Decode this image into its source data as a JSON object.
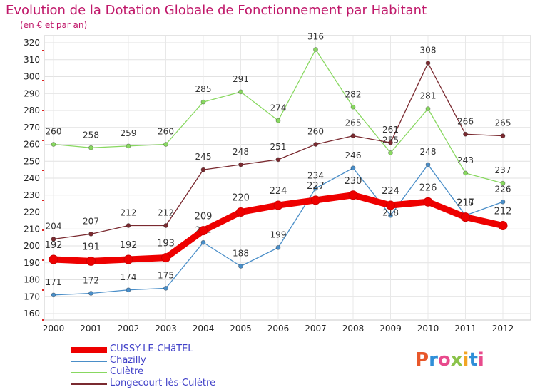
{
  "header": {
    "title": "Evolution de la Dotation Globale de Fonctionnement par Habitant",
    "subtitle": "(en € et par an)"
  },
  "logo": {
    "text": "Proxiti",
    "colors": [
      "#e8572a",
      "#2f8fd8",
      "#e84a8c",
      "#8bc34a",
      "#f2a524",
      "#2f8fd8",
      "#e84a8c"
    ]
  },
  "chart_data": {
    "type": "line",
    "title": "Evolution de la Dotation Globale de Fonctionnement par Habitant",
    "subtitle": "(en € et par an)",
    "xlabel": "",
    "ylabel": "",
    "categories": [
      "2000",
      "2001",
      "2002",
      "2003",
      "2004",
      "2005",
      "2006",
      "2007",
      "2008",
      "2009",
      "2010",
      "2011",
      "2012"
    ],
    "ylim": [
      160,
      320
    ],
    "yticks": [
      160,
      170,
      180,
      190,
      200,
      210,
      220,
      230,
      240,
      250,
      260,
      270,
      280,
      290,
      300,
      310,
      320
    ],
    "grid": true,
    "legend_position": "bottom-left",
    "series": [
      {
        "name": "Chazilly",
        "color": "#4a8ec8",
        "values": [
          171,
          172,
          174,
          175,
          202,
          188,
          199,
          234,
          246,
          218,
          248,
          218,
          226
        ]
      },
      {
        "name": "Culètre",
        "color": "#88d860",
        "values": [
          260,
          258,
          259,
          260,
          285,
          291,
          274,
          316,
          282,
          255,
          281,
          243,
          237
        ]
      },
      {
        "name": "Longecourt-lès-Culètre",
        "color": "#7a2a30",
        "values": [
          204,
          207,
          212,
          212,
          245,
          248,
          251,
          260,
          265,
          261,
          308,
          266,
          265
        ]
      },
      {
        "name": "CUSSY-LE-CHâTEL",
        "color": "#ee0000",
        "values": [
          192,
          191,
          192,
          193,
          209,
          220,
          224,
          227,
          230,
          224,
          226,
          217,
          212
        ],
        "highlight": true
      }
    ],
    "legend_order": [
      "CUSSY-LE-CHâTEL",
      "Chazilly",
      "Culètre",
      "Longecourt-lès-Culètre"
    ]
  }
}
